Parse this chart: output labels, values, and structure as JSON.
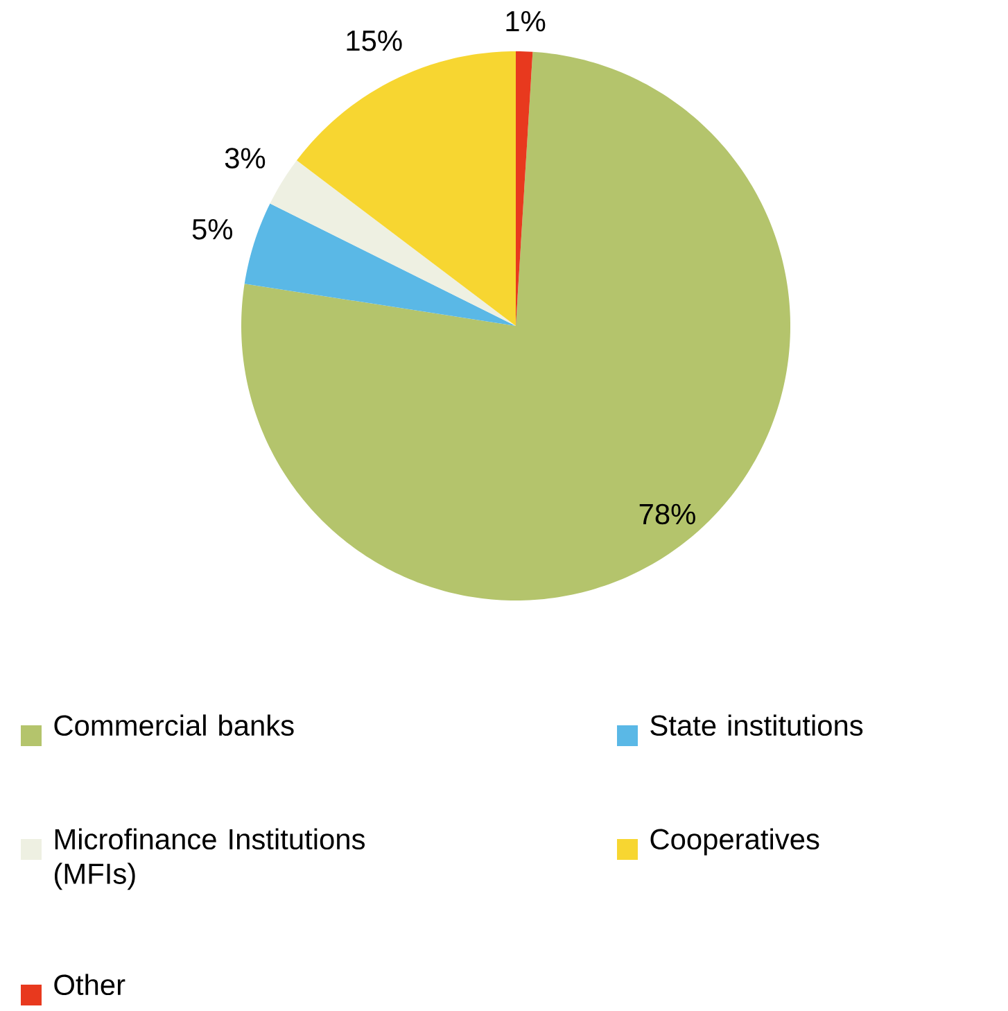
{
  "chart_data": {
    "type": "pie",
    "categories": [
      "Commercial banks",
      "State institutions",
      "Microfinance Institutions (MFIs)",
      "Cooperatives",
      "Other"
    ],
    "values": [
      78,
      5,
      3,
      15,
      1
    ],
    "value_labels": [
      "78%",
      "5%",
      "3%",
      "15%",
      "1%"
    ],
    "colors": [
      "#b4c46c",
      "#5ab8e6",
      "#eef0e2",
      "#f7d631",
      "#e8391e"
    ],
    "legend": "bottom"
  }
}
